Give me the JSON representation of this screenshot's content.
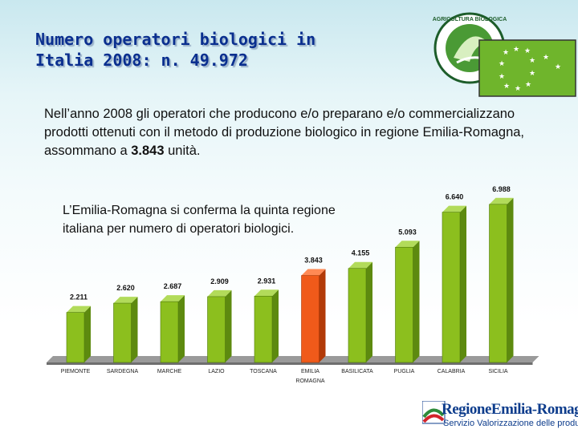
{
  "title_line1": "Numero operatori biologici in",
  "title_line2": "Italia 2008: n. 49.972",
  "intro": {
    "pre": "Nell’anno 2008 gli operatori che producono e/o preparano e/o commercializzano prodotti ottenuti con il metodo di produzione biologico in regione Emilia-Romagna, assommano a ",
    "bold": "3.843",
    "post": " unità."
  },
  "callout": "L’Emilia-Romagna si conferma la quinta regione italiana per numero di operatori biologici.",
  "logos": {
    "organic_ring_text": "AGRICOLTURA BIOLOGICA",
    "region_name": "RegioneEmilia-Romagna",
    "region_sub": "Servizio Valorizzazione delle produzioni"
  },
  "colors": {
    "bar_default": "#8cbf1e",
    "bar_highlight": "#f05a1a",
    "title": "#0a2f8f"
  },
  "chart_data": {
    "type": "bar",
    "categories": [
      "PIEMONTE",
      "SARDEGNA",
      "MARCHE",
      "LAZIO",
      "TOSCANA",
      "EMILIA ROMAGNA",
      "BASILICATA",
      "PUGLIA",
      "CALABRIA",
      "SICILIA"
    ],
    "values": [
      2211,
      2620,
      2687,
      2909,
      2931,
      3843,
      4155,
      5093,
      6640,
      6988
    ],
    "value_labels": [
      "2.211",
      "2.620",
      "2.687",
      "2.909",
      "2.931",
      "3.843",
      "4.155",
      "5.093",
      "6.640",
      "6.988"
    ],
    "highlight_index": 5,
    "title": "",
    "xlabel": "",
    "ylabel": "",
    "ylim": [
      0,
      7300
    ],
    "grid": false,
    "legend": "none"
  }
}
